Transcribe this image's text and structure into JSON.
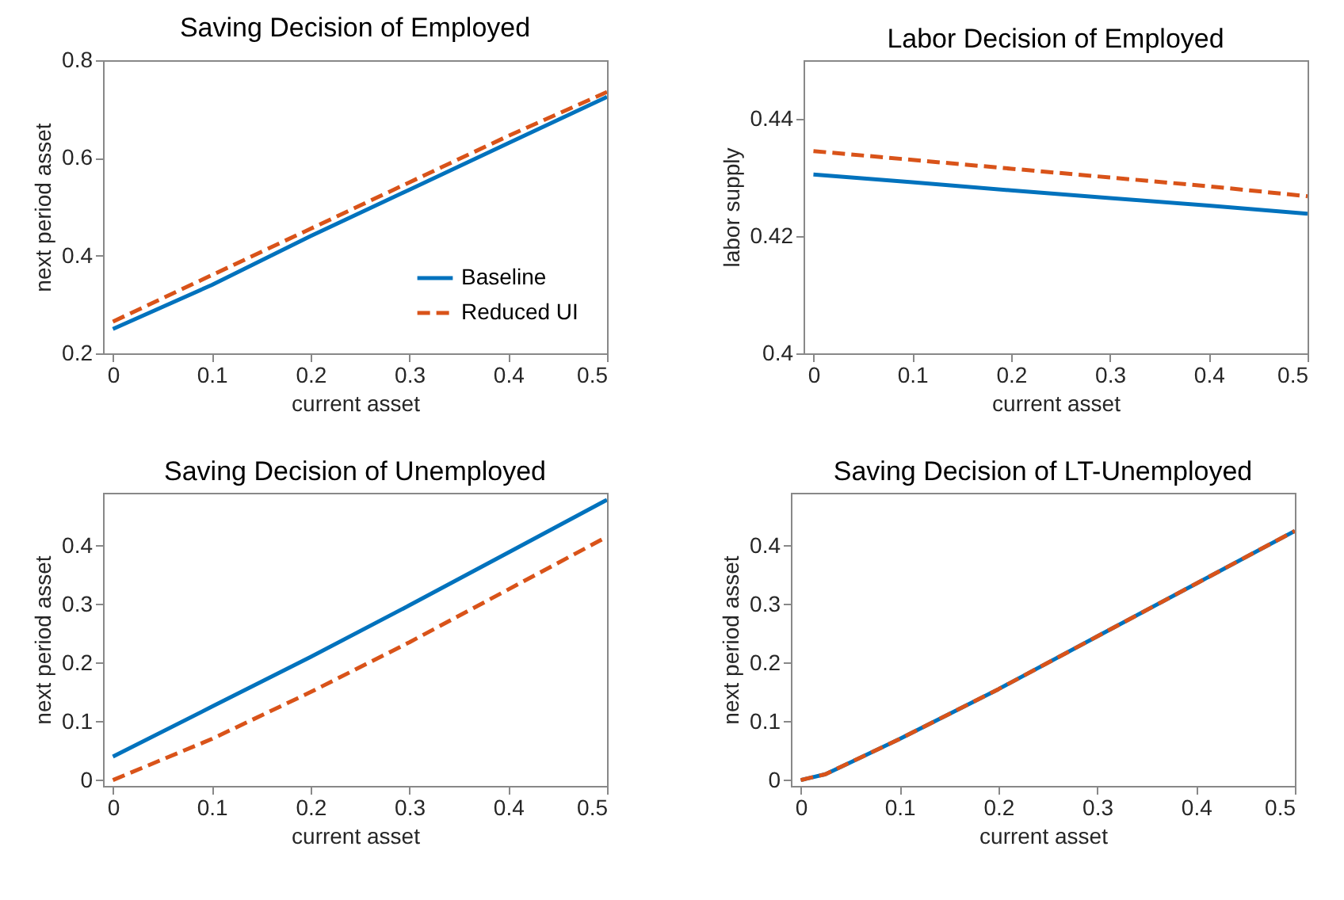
{
  "chart_data": [
    {
      "type": "line",
      "title": "Saving Decision of Employed",
      "xlabel": "current asset",
      "ylabel": "next period asset",
      "xlim": [
        -0.01,
        0.5
      ],
      "xticks": [
        0,
        0.1,
        0.2,
        0.3,
        0.4,
        0.5
      ],
      "ylim": [
        0.2,
        0.8
      ],
      "yticks": [
        0.2,
        0.4,
        0.6,
        0.8
      ],
      "legend": "bottom right",
      "x": [
        0,
        0.1,
        0.2,
        0.3,
        0.4,
        0.5
      ],
      "series": [
        {
          "name": "Baseline",
          "color": "#0072bd",
          "line_style": "solid",
          "values": [
            0.25,
            0.34,
            0.44,
            0.535,
            0.63,
            0.725
          ]
        },
        {
          "name": "Reduced UI",
          "color": "#d95319",
          "line_style": "dashed",
          "values": [
            0.265,
            0.36,
            0.455,
            0.55,
            0.645,
            0.735
          ]
        }
      ]
    },
    {
      "type": "line",
      "title": "Labor Decision of Employed",
      "xlabel": "current asset",
      "ylabel": "labor supply",
      "xlim": [
        -0.01,
        0.5
      ],
      "xticks": [
        0,
        0.1,
        0.2,
        0.3,
        0.4,
        0.5
      ],
      "ylim": [
        0.4,
        0.45
      ],
      "yticks": [
        0.4,
        0.42,
        0.44
      ],
      "x": [
        0,
        0.1,
        0.2,
        0.3,
        0.4,
        0.5
      ],
      "series": [
        {
          "color": "#0072bd",
          "line_style": "solid",
          "values": [
            0.4305,
            0.4292,
            0.4278,
            0.4265,
            0.4252,
            0.4238
          ]
        },
        {
          "color": "#d95319",
          "line_style": "dashed",
          "values": [
            0.4345,
            0.433,
            0.4315,
            0.43,
            0.4285,
            0.4268
          ]
        }
      ]
    },
    {
      "type": "line",
      "title": "Saving Decision of Unemployed",
      "xlabel": "current asset",
      "ylabel": "next period asset",
      "xlim": [
        -0.01,
        0.5
      ],
      "xticks": [
        0,
        0.1,
        0.2,
        0.3,
        0.4,
        0.5
      ],
      "ylim": [
        -0.01,
        0.49
      ],
      "yticks": [
        0,
        0.1,
        0.2,
        0.3,
        0.4
      ],
      "x": [
        0,
        0.1,
        0.2,
        0.3,
        0.4,
        0.5
      ],
      "series": [
        {
          "color": "#0072bd",
          "line_style": "solid",
          "values": [
            0.04,
            0.125,
            0.21,
            0.298,
            0.388,
            0.478
          ]
        },
        {
          "color": "#d95319",
          "line_style": "dashed",
          "values": [
            0,
            0.07,
            0.15,
            0.235,
            0.325,
            0.415
          ]
        }
      ]
    },
    {
      "type": "line",
      "title": "Saving Decision of LT-Unemployed",
      "xlabel": "current asset",
      "ylabel": "next period asset",
      "xlim": [
        -0.01,
        0.5
      ],
      "xticks": [
        0,
        0.1,
        0.2,
        0.3,
        0.4,
        0.5
      ],
      "ylim": [
        -0.01,
        0.49
      ],
      "yticks": [
        0,
        0.1,
        0.2,
        0.3,
        0.4
      ],
      "x": [
        0,
        0.025,
        0.05,
        0.1,
        0.2,
        0.3,
        0.4,
        0.5
      ],
      "series": [
        {
          "color": "#0072bd",
          "line_style": "solid",
          "values": [
            0,
            0.01,
            0.03,
            0.07,
            0.155,
            0.245,
            0.335,
            0.425
          ]
        },
        {
          "color": "#d95319",
          "line_style": "dashed",
          "values": [
            0,
            0.01,
            0.03,
            0.07,
            0.155,
            0.245,
            0.335,
            0.425
          ]
        }
      ]
    }
  ]
}
